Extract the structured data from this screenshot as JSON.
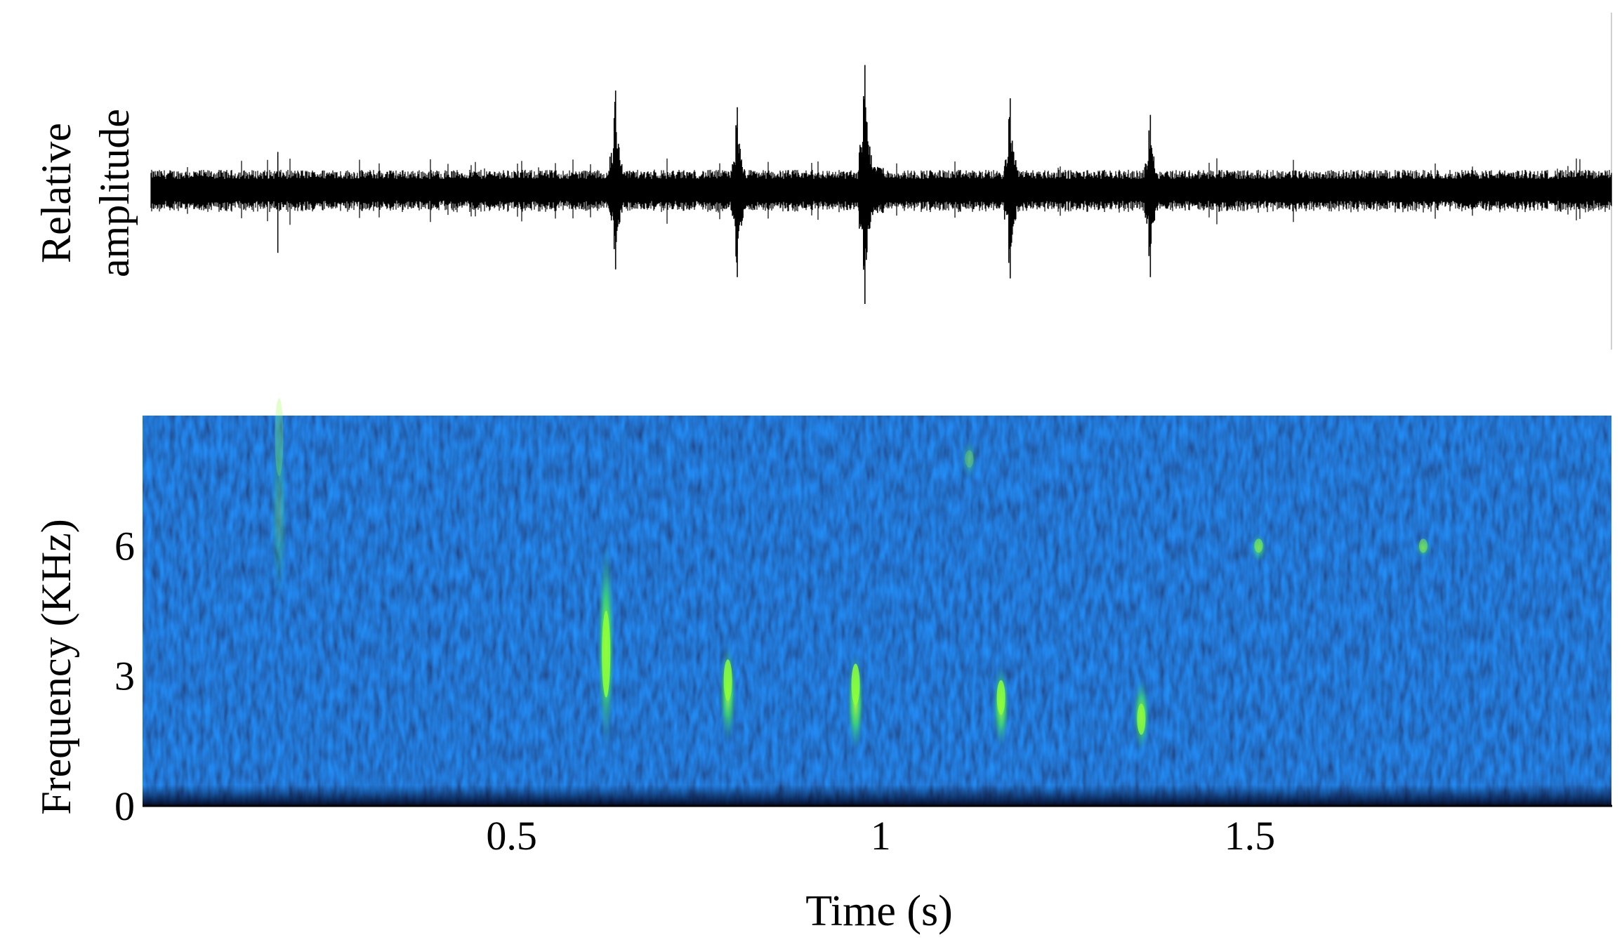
{
  "chart_data": [
    {
      "type": "line",
      "panel": "waveform",
      "ylabel": [
        "Relative",
        "amplitude"
      ],
      "xlim": [
        0,
        1.98
      ],
      "baseline_noise_amplitude": 0.16,
      "pulses": [
        {
          "t": 0.628,
          "peak_pos": 0.78,
          "peak_neg": 0.62
        },
        {
          "t": 0.793,
          "peak_pos": 0.65,
          "peak_neg": 0.68
        },
        {
          "t": 0.966,
          "peak_pos": 0.98,
          "peak_neg": 0.89
        },
        {
          "t": 1.163,
          "peak_pos": 0.72,
          "peak_neg": 0.69
        },
        {
          "t": 1.353,
          "peak_pos": 0.59,
          "peak_neg": 0.68
        }
      ],
      "isolated_spikes": [
        {
          "t": 0.172,
          "value": -0.49
        },
        {
          "t": 0.172,
          "value": 0.3
        }
      ],
      "color": "#000000"
    },
    {
      "type": "heatmap",
      "panel": "spectrogram",
      "xlabel": "Time (s)",
      "ylabel": "Frequency (KHz)",
      "xlim": [
        0,
        1.99
      ],
      "ylim": [
        0,
        9
      ],
      "xticks": [
        0.5,
        1,
        1.5
      ],
      "xtick_labels": [
        "0.5",
        "1",
        "1.5"
      ],
      "yticks": [
        0,
        3,
        6
      ],
      "ytick_labels": [
        "0",
        "3",
        "6"
      ],
      "colormap": [
        "#05072a",
        "#0a1f8f",
        "#1536b8",
        "#2a7fb0",
        "#3fd07a",
        "#8cff3a"
      ],
      "background_color": "#0f2a9a",
      "calls": [
        {
          "t": 0.628,
          "f_low": 1.2,
          "f_high": 6.2,
          "peak_f": 3.5,
          "intensity": 0.95
        },
        {
          "t": 0.793,
          "f_low": 1.4,
          "f_high": 3.8,
          "peak_f": 2.9,
          "intensity": 0.9
        },
        {
          "t": 0.966,
          "f_low": 1.2,
          "f_high": 3.6,
          "peak_f": 2.8,
          "intensity": 0.95
        },
        {
          "t": 1.163,
          "f_low": 1.3,
          "f_high": 3.3,
          "peak_f": 2.5,
          "intensity": 0.92
        },
        {
          "t": 1.353,
          "f_low": 1.2,
          "f_high": 3.0,
          "peak_f": 2.0,
          "intensity": 0.85
        },
        {
          "t": 1.512,
          "f_low": 5.6,
          "f_high": 6.3,
          "peak_f": 6.0,
          "intensity": 0.55
        },
        {
          "t": 1.735,
          "f_low": 5.7,
          "f_high": 6.2,
          "peak_f": 6.0,
          "intensity": 0.5
        },
        {
          "t": 0.185,
          "f_low": 4.5,
          "f_high": 9.0,
          "peak_f": 8.5,
          "intensity": 0.3
        },
        {
          "t": 1.12,
          "f_low": 7.5,
          "f_high": 8.5,
          "peak_f": 8.0,
          "intensity": 0.3
        }
      ]
    }
  ]
}
